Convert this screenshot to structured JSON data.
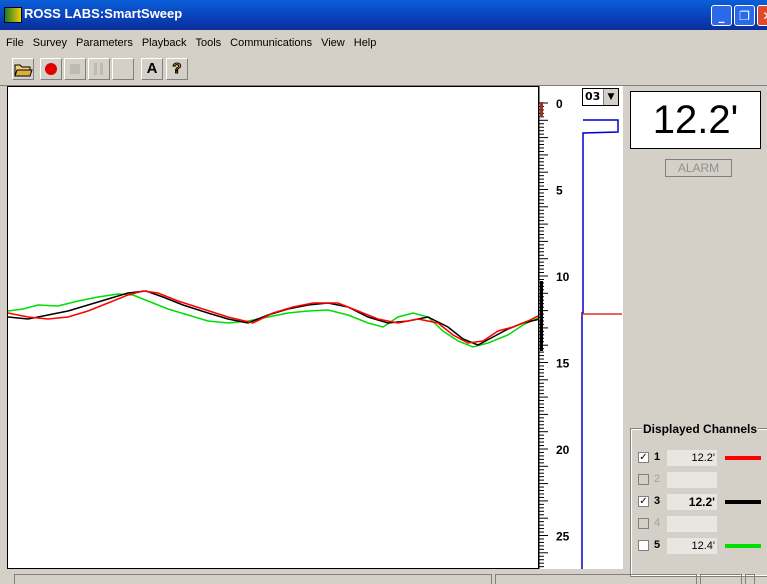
{
  "window": {
    "title": "ROSS LABS:SmartSweep"
  },
  "menu": [
    "File",
    "Survey",
    "Parameters",
    "Playback",
    "Tools",
    "Communications",
    "View",
    "Help"
  ],
  "toolbar": {
    "font_button_label": "A",
    "help_button_label": "?"
  },
  "depth_scale": [
    "0",
    "5",
    "10",
    "15",
    "20",
    "25"
  ],
  "channel_selector": {
    "value": "03"
  },
  "depth_readout": "12.2'",
  "alarm_label": "ALARM",
  "channels_panel": {
    "title": "Displayed Channels",
    "channels": [
      {
        "num": "1",
        "checked": true,
        "enabled": true,
        "depth": "12.2'",
        "color": "#ff0000"
      },
      {
        "num": "2",
        "checked": false,
        "enabled": false,
        "depth": "",
        "color": ""
      },
      {
        "num": "3",
        "checked": true,
        "enabled": true,
        "depth": "12.2'",
        "color": "#000000"
      },
      {
        "num": "4",
        "checked": false,
        "enabled": false,
        "depth": "",
        "color": ""
      },
      {
        "num": "5",
        "checked": false,
        "enabled": true,
        "depth": "12.4'",
        "color": "#00dd00"
      }
    ]
  },
  "colors": {
    "title_bar": "#0a4fd0",
    "channel_1": "#ff0000",
    "channel_3": "#000000",
    "channel_5": "#00dd00",
    "scan_trace": "#0000cc"
  }
}
